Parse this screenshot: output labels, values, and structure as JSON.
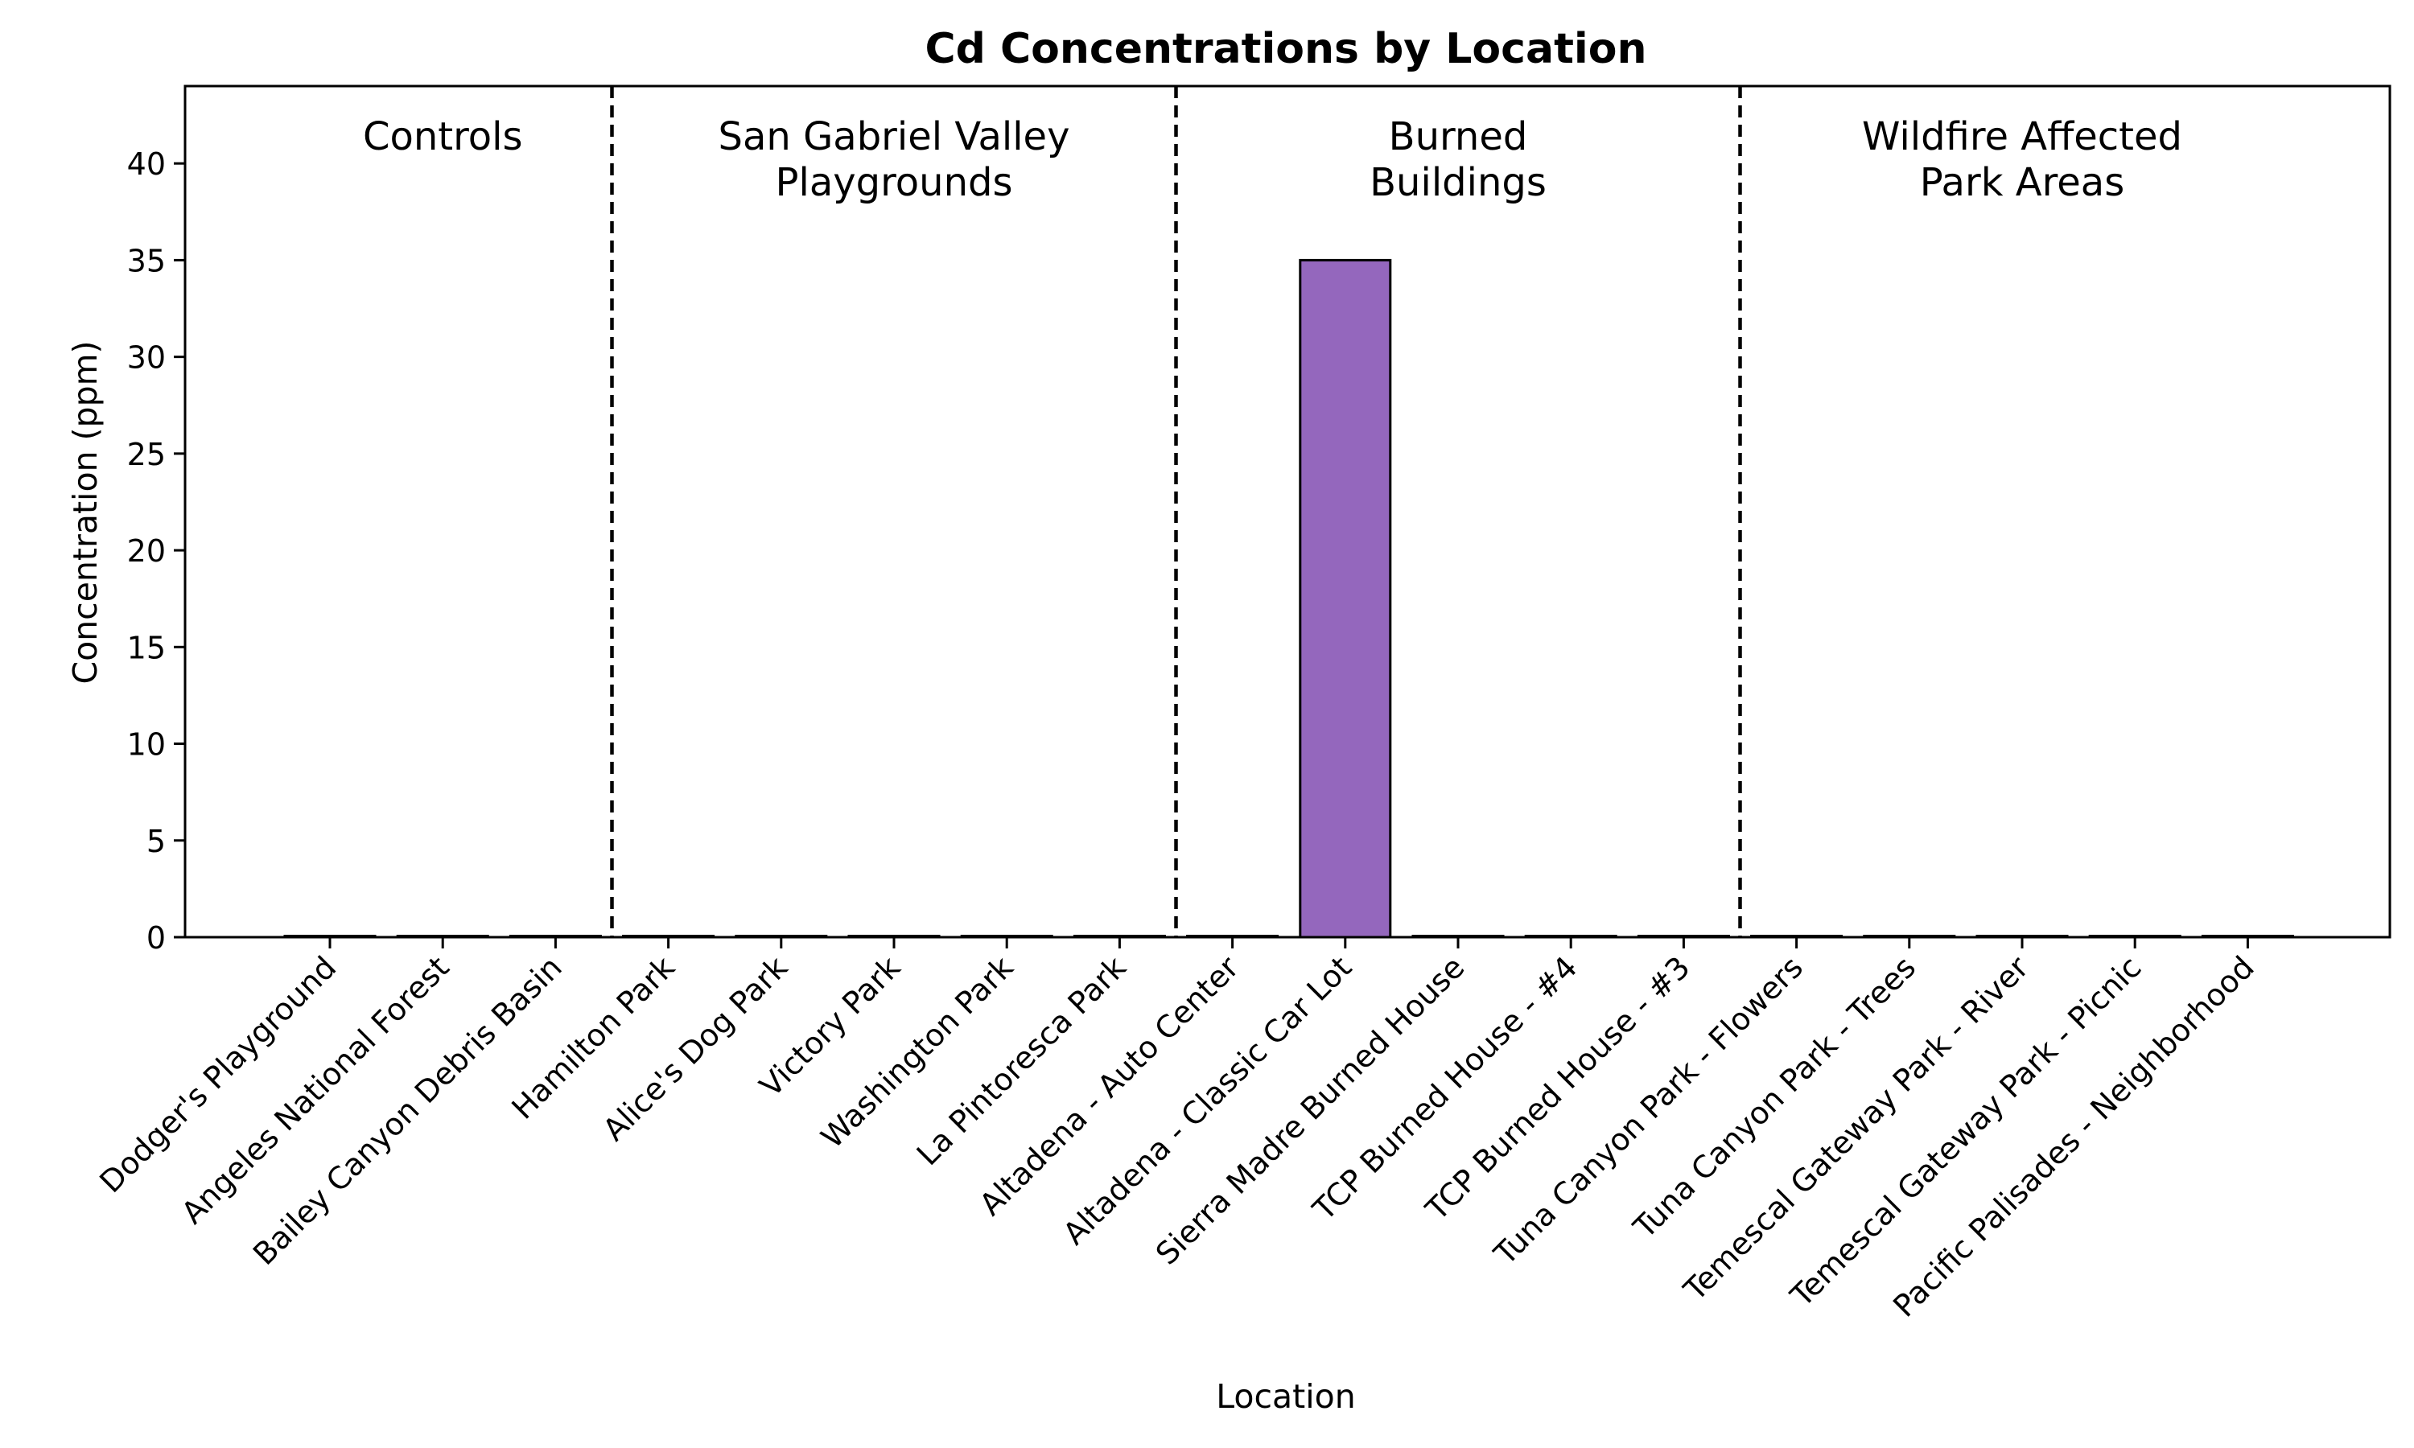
{
  "chart_data": {
    "type": "bar",
    "title": "Cd Concentrations by Location",
    "xlabel": "Location",
    "ylabel": "Concentration (ppm)",
    "ylim": [
      0,
      44
    ],
    "yticks": [
      0,
      5,
      10,
      15,
      20,
      25,
      30,
      35,
      40
    ],
    "grid": false,
    "categories": [
      "Dodger's Playground",
      "Angeles National Forest",
      "Bailey Canyon Debris Basin",
      "Hamilton Park",
      "Alice's Dog Park",
      "Victory Park",
      "Washington Park",
      "La Pintoresca Park",
      "Altadena - Auto Center",
      "Altadena - Classic Car Lot",
      "Sierra Madre Burned House",
      "TCP Burned House - #4",
      "TCP Burned House - #3",
      "Tuna Canyon Park - Flowers",
      "Tuna Canyon Park - Trees",
      "Temescal Gateway Park - River",
      "Temescal Gateway Park - Picnic",
      "Pacific Palisades - Neighborhood"
    ],
    "values": [
      0,
      0,
      0,
      0,
      0,
      0,
      0,
      0,
      0,
      35,
      0,
      0,
      0,
      0,
      0,
      0,
      0,
      0
    ],
    "bar_color": "#9467bd",
    "edge_color": "#000000",
    "groups": [
      {
        "label": [
          "Controls"
        ],
        "start": 0,
        "end": 2
      },
      {
        "label": [
          "San Gabriel Valley",
          "Playgrounds"
        ],
        "start": 3,
        "end": 7
      },
      {
        "label": [
          "Burned",
          "Buildings"
        ],
        "start": 8,
        "end": 12
      },
      {
        "label": [
          "Wildfire Affected",
          "Park Areas"
        ],
        "start": 13,
        "end": 17
      }
    ]
  }
}
